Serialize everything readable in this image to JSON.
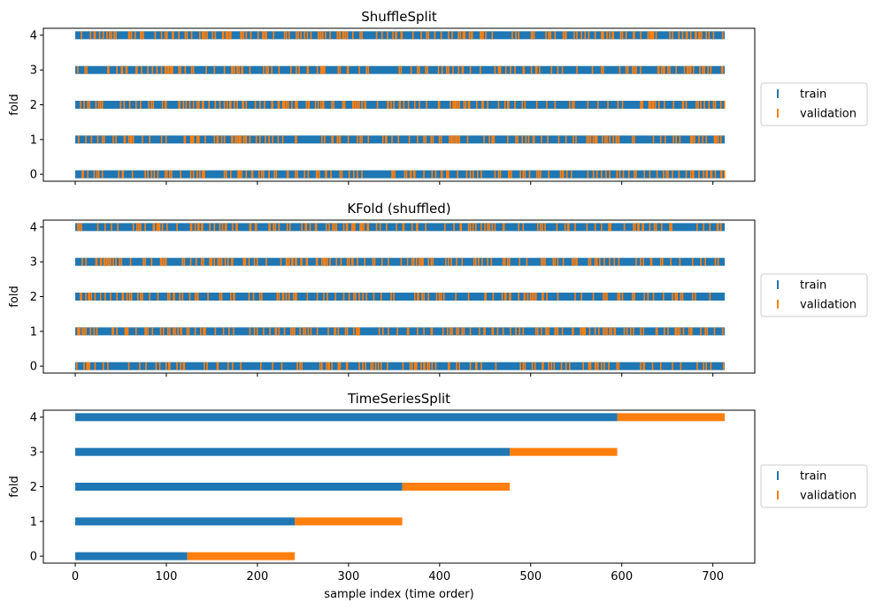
{
  "chart_data": [
    {
      "type": "scatter",
      "title": "ShuffleSplit",
      "ylabel": "fold",
      "xlabel": "",
      "xlim": [
        -35,
        746
      ],
      "ylim": [
        -0.2,
        4.2
      ],
      "x_ticks": [
        0,
        100,
        200,
        300,
        400,
        500,
        600,
        700
      ],
      "x_ticklabels_visible": false,
      "y_ticks": [
        0,
        1,
        2,
        3,
        4
      ],
      "n_samples": 713,
      "grid": false,
      "legend_placement": "right",
      "pattern": "random",
      "series": [
        {
          "name": "train",
          "color": "#1f77b4",
          "folds": [
            0,
            1,
            2,
            3,
            4
          ],
          "fraction_of_samples": 0.8
        },
        {
          "name": "validation",
          "color": "#ff7f0e",
          "folds": [
            0,
            1,
            2,
            3,
            4
          ],
          "fraction_of_samples": 0.2
        }
      ]
    },
    {
      "type": "scatter",
      "title": "KFold (shuffled)",
      "ylabel": "fold",
      "xlabel": "",
      "xlim": [
        -35,
        746
      ],
      "ylim": [
        -0.2,
        4.2
      ],
      "x_ticks": [
        0,
        100,
        200,
        300,
        400,
        500,
        600,
        700
      ],
      "x_ticklabels_visible": false,
      "y_ticks": [
        0,
        1,
        2,
        3,
        4
      ],
      "n_samples": 713,
      "grid": false,
      "legend_placement": "right",
      "pattern": "random",
      "series": [
        {
          "name": "train",
          "color": "#1f77b4",
          "folds": [
            0,
            1,
            2,
            3,
            4
          ],
          "fraction_of_samples": 0.8
        },
        {
          "name": "validation",
          "color": "#ff7f0e",
          "folds": [
            0,
            1,
            2,
            3,
            4
          ],
          "fraction_of_samples": 0.2
        }
      ]
    },
    {
      "type": "scatter",
      "title": "TimeSeriesSplit",
      "ylabel": "fold",
      "xlabel": "sample index (time order)",
      "xlim": [
        -35,
        746
      ],
      "ylim": [
        -0.2,
        4.2
      ],
      "x_ticks": [
        0,
        100,
        200,
        300,
        400,
        500,
        600,
        700
      ],
      "x_ticklabels_visible": true,
      "y_ticks": [
        0,
        1,
        2,
        3,
        4
      ],
      "n_samples": 713,
      "grid": false,
      "legend_placement": "right",
      "pattern": "ranges",
      "series": [
        {
          "name": "train",
          "color": "#1f77b4",
          "ranges": [
            {
              "fold": 0,
              "start": 0,
              "end": 123
            },
            {
              "fold": 1,
              "start": 0,
              "end": 241
            },
            {
              "fold": 2,
              "start": 0,
              "end": 359
            },
            {
              "fold": 3,
              "start": 0,
              "end": 477
            },
            {
              "fold": 4,
              "start": 0,
              "end": 595
            }
          ]
        },
        {
          "name": "validation",
          "color": "#ff7f0e",
          "ranges": [
            {
              "fold": 0,
              "start": 123,
              "end": 241
            },
            {
              "fold": 1,
              "start": 241,
              "end": 359
            },
            {
              "fold": 2,
              "start": 359,
              "end": 477
            },
            {
              "fold": 3,
              "start": 477,
              "end": 595
            },
            {
              "fold": 4,
              "start": 595,
              "end": 713
            }
          ]
        }
      ]
    }
  ]
}
